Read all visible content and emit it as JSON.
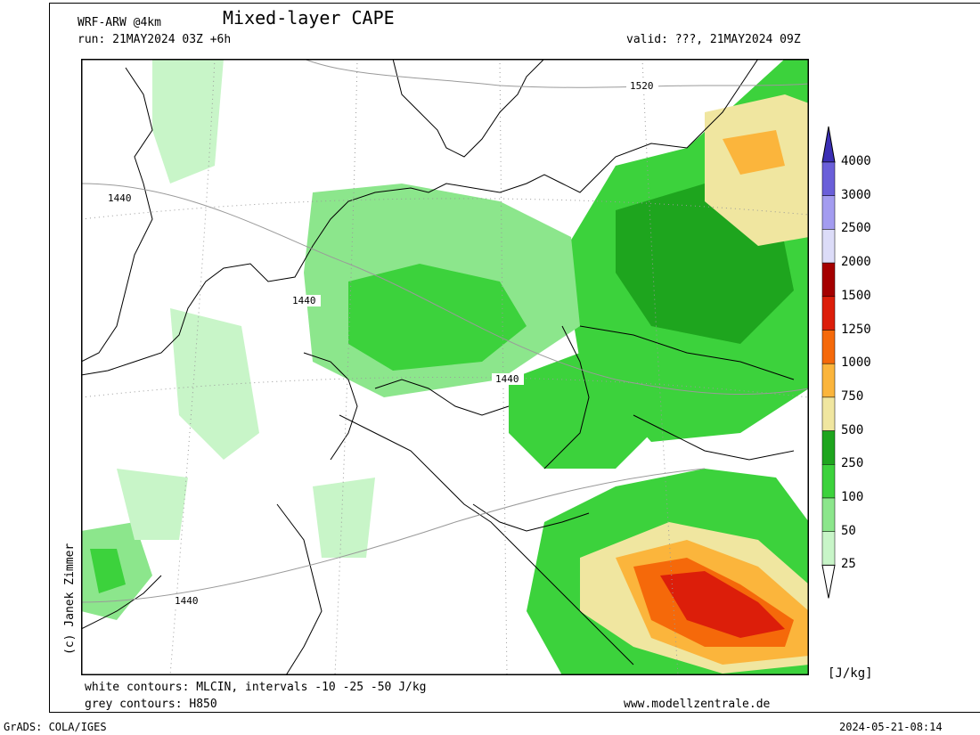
{
  "header": {
    "model": "WRF-ARW @4km",
    "title": "Mixed-layer CAPE",
    "run": "run: 21MAY2024 03Z +6h",
    "valid": "valid: ???, 21MAY2024 09Z"
  },
  "footer": {
    "cin_note": "white contours: MLCIN, intervals -10 -25 -50 J/kg",
    "h850_note": "grey contours: H850",
    "website": "www.modellzentrale.de",
    "grads": "GrADS: COLA/IGES",
    "timestamp": "2024-05-21-08:14"
  },
  "credit": "(c) Janek Zimmer",
  "contour_labels": [
    "1520",
    "1440",
    "1440",
    "1440",
    "1440"
  ],
  "colorbar": {
    "unit": "[J/kg]",
    "levels": [
      {
        "label": "4000",
        "color": "#3b2fb5"
      },
      {
        "label": "3000",
        "color": "#6a5fd9"
      },
      {
        "label": "2500",
        "color": "#a39cf0"
      },
      {
        "label": "2000",
        "color": "#dcdcf8"
      },
      {
        "label": "1500",
        "color": "#a50000"
      },
      {
        "label": "1250",
        "color": "#dc1e0a"
      },
      {
        "label": "1000",
        "color": "#f5690a"
      },
      {
        "label": "750",
        "color": "#fbb53c"
      },
      {
        "label": "500",
        "color": "#f0e6a0"
      },
      {
        "label": "250",
        "color": "#1ea51e"
      },
      {
        "label": "100",
        "color": "#3cd23c"
      },
      {
        "label": "50",
        "color": "#8ce68c"
      },
      {
        "label": "25",
        "color": "#c8f5c8"
      }
    ]
  }
}
